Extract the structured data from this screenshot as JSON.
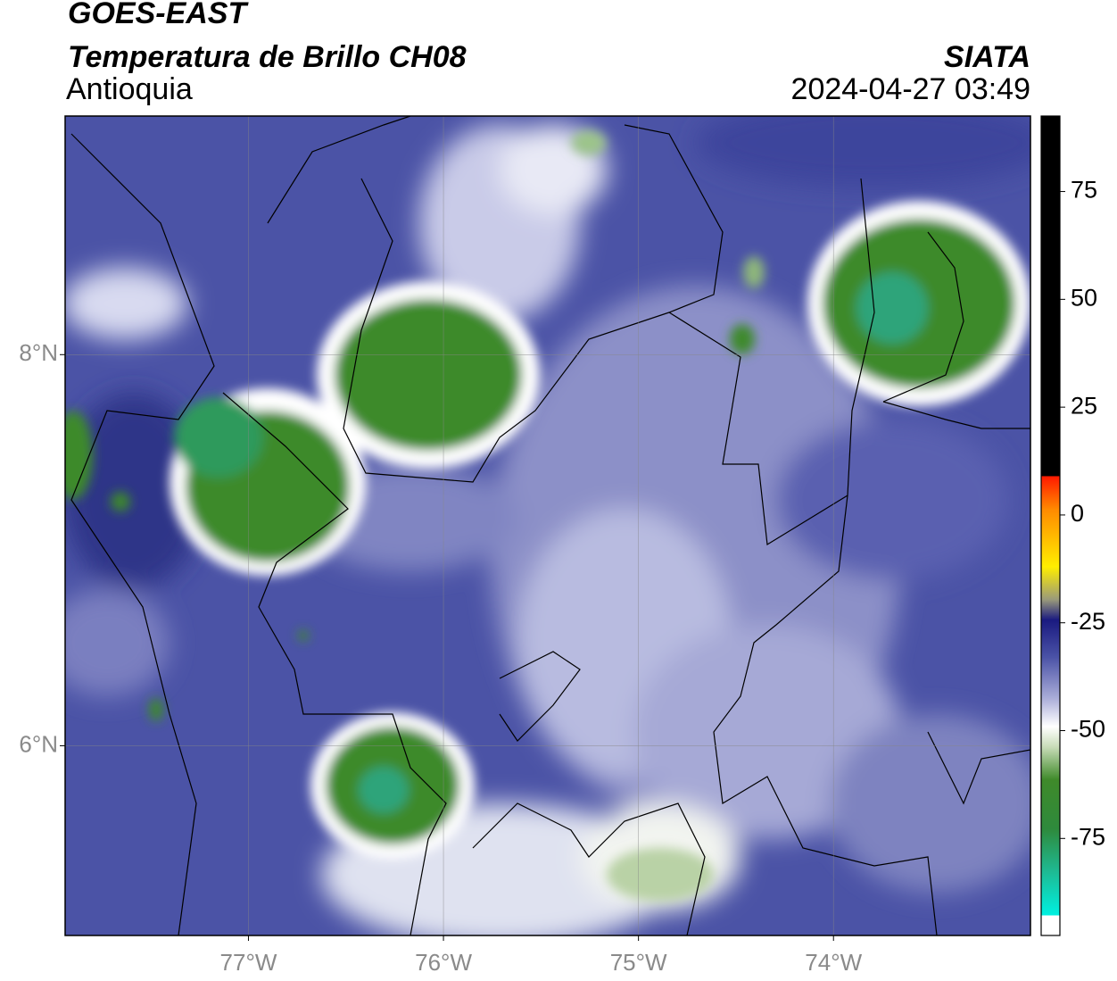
{
  "header": {
    "title": "GOES-EAST",
    "product": "Temperatura de Brillo CH08",
    "region": "Antioquia",
    "source": "SIATA",
    "datetime": "2024-04-27 03:49"
  },
  "map": {
    "xlim": [
      -77.94,
      -72.99
    ],
    "ylim": [
      5.03,
      9.22
    ],
    "xticks": [
      {
        "value": -77,
        "label": "77°W"
      },
      {
        "value": -76,
        "label": "76°W"
      },
      {
        "value": -75,
        "label": "75°W"
      },
      {
        "value": -74,
        "label": "74°W"
      }
    ],
    "yticks": [
      {
        "value": 8,
        "label": "8°N"
      },
      {
        "value": 6,
        "label": "6°N"
      }
    ],
    "grid": true
  },
  "colorbar": {
    "lim": [
      -97.5,
      92.5
    ],
    "ticks": [
      75,
      50,
      25,
      0,
      -25,
      -50,
      -75
    ]
  }
}
